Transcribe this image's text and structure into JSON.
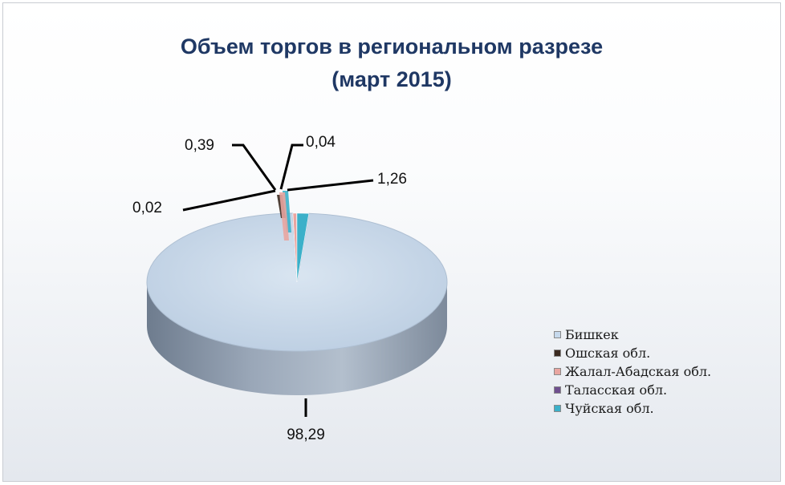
{
  "chart_data": {
    "type": "pie",
    "title": "Объем торгов в региональном разрезе",
    "subtitle": "(март 2015)",
    "categories": [
      "Бишкек",
      "Ошская обл.",
      "Жалал-Абадская обл.",
      "Таласская обл.",
      "Чуйская обл."
    ],
    "values": [
      98.29,
      0.02,
      0.39,
      0.04,
      1.26
    ],
    "value_labels": [
      "98,29",
      "0,02",
      "0,39",
      "0,04",
      "1,26"
    ],
    "colors": [
      "#c6d9ec",
      "#3b2a20",
      "#e9a5a0",
      "#6f4f8f",
      "#3bb0c9"
    ],
    "legend_position": "right",
    "style": "3d-pie"
  }
}
